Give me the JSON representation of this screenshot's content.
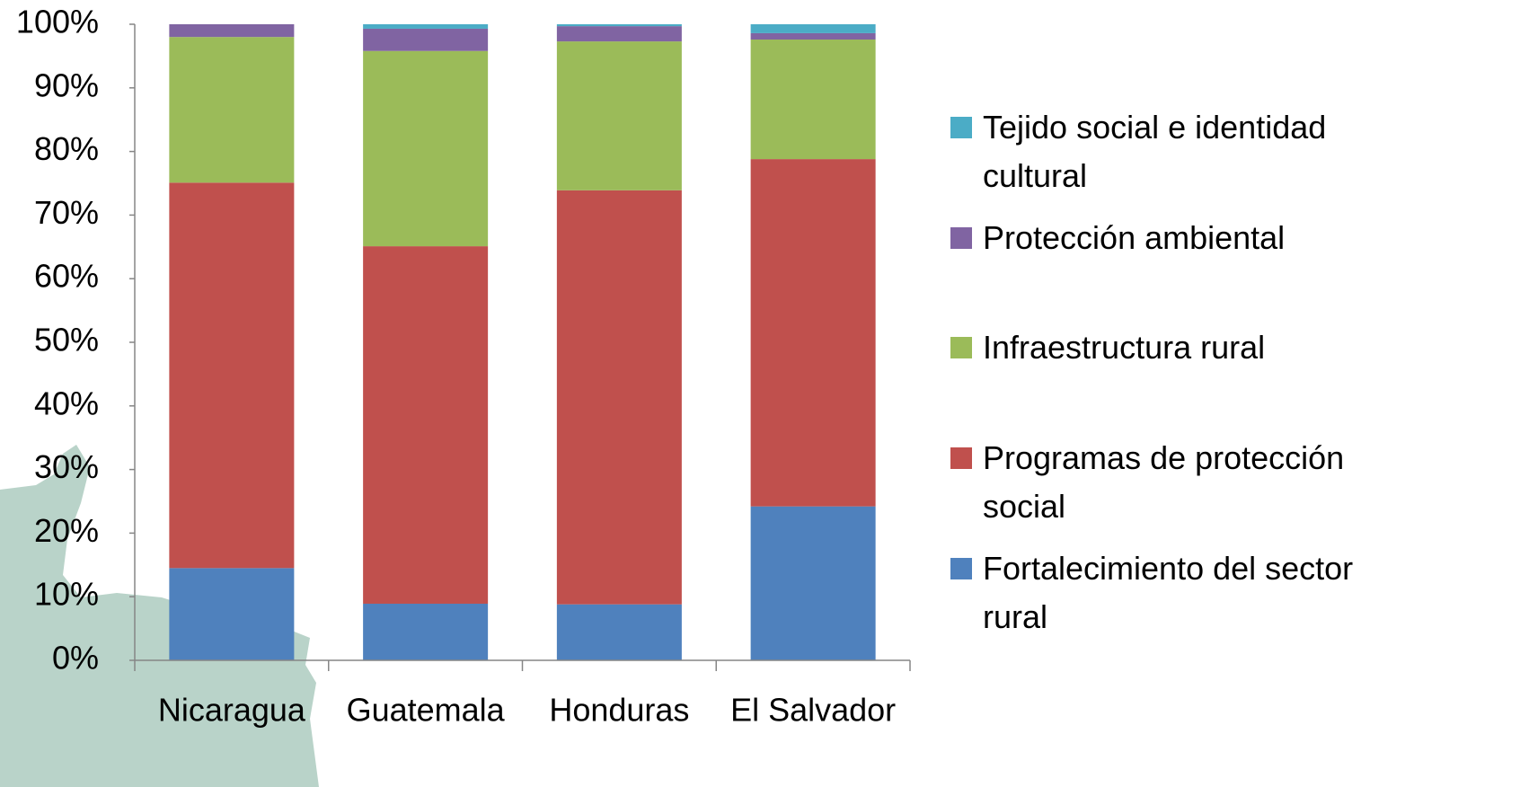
{
  "chart_data": {
    "type": "stacked_bar",
    "categories": [
      "Nicaragua",
      "Guatemala",
      "Honduras",
      "El Salvador"
    ],
    "series": [
      {
        "name": "Fortalecimiento del sector rural",
        "color": "#4f81bd",
        "values": [
          14.5,
          8.9,
          8.8,
          24.2
        ]
      },
      {
        "name": "Programas de protección social",
        "color": "#c0504d",
        "values": [
          60.6,
          56.2,
          65.1,
          54.6
        ]
      },
      {
        "name": "Infraestructura rural",
        "color": "#9bbb59",
        "values": [
          22.9,
          30.7,
          23.4,
          18.8
        ]
      },
      {
        "name": "Protección ambiental",
        "color": "#8064a2",
        "values": [
          2.0,
          3.5,
          2.4,
          1.0
        ]
      },
      {
        "name": "Tejido social e identidad cultural",
        "color": "#4bacc6",
        "values": [
          0,
          0.7,
          0.3,
          1.4
        ]
      }
    ],
    "ylim": [
      0,
      100
    ],
    "yticks": [
      {
        "value": 0,
        "label": "0%"
      },
      {
        "value": 10,
        "label": "10%"
      },
      {
        "value": 20,
        "label": "20%"
      },
      {
        "value": 30,
        "label": "30%"
      },
      {
        "value": 40,
        "label": "40%"
      },
      {
        "value": 50,
        "label": "50%"
      },
      {
        "value": 60,
        "label": "60%"
      },
      {
        "value": 70,
        "label": "70%"
      },
      {
        "value": 80,
        "label": "80%"
      },
      {
        "value": 90,
        "label": "90%"
      },
      {
        "value": 100,
        "label": "100%"
      }
    ],
    "legend": "right"
  }
}
